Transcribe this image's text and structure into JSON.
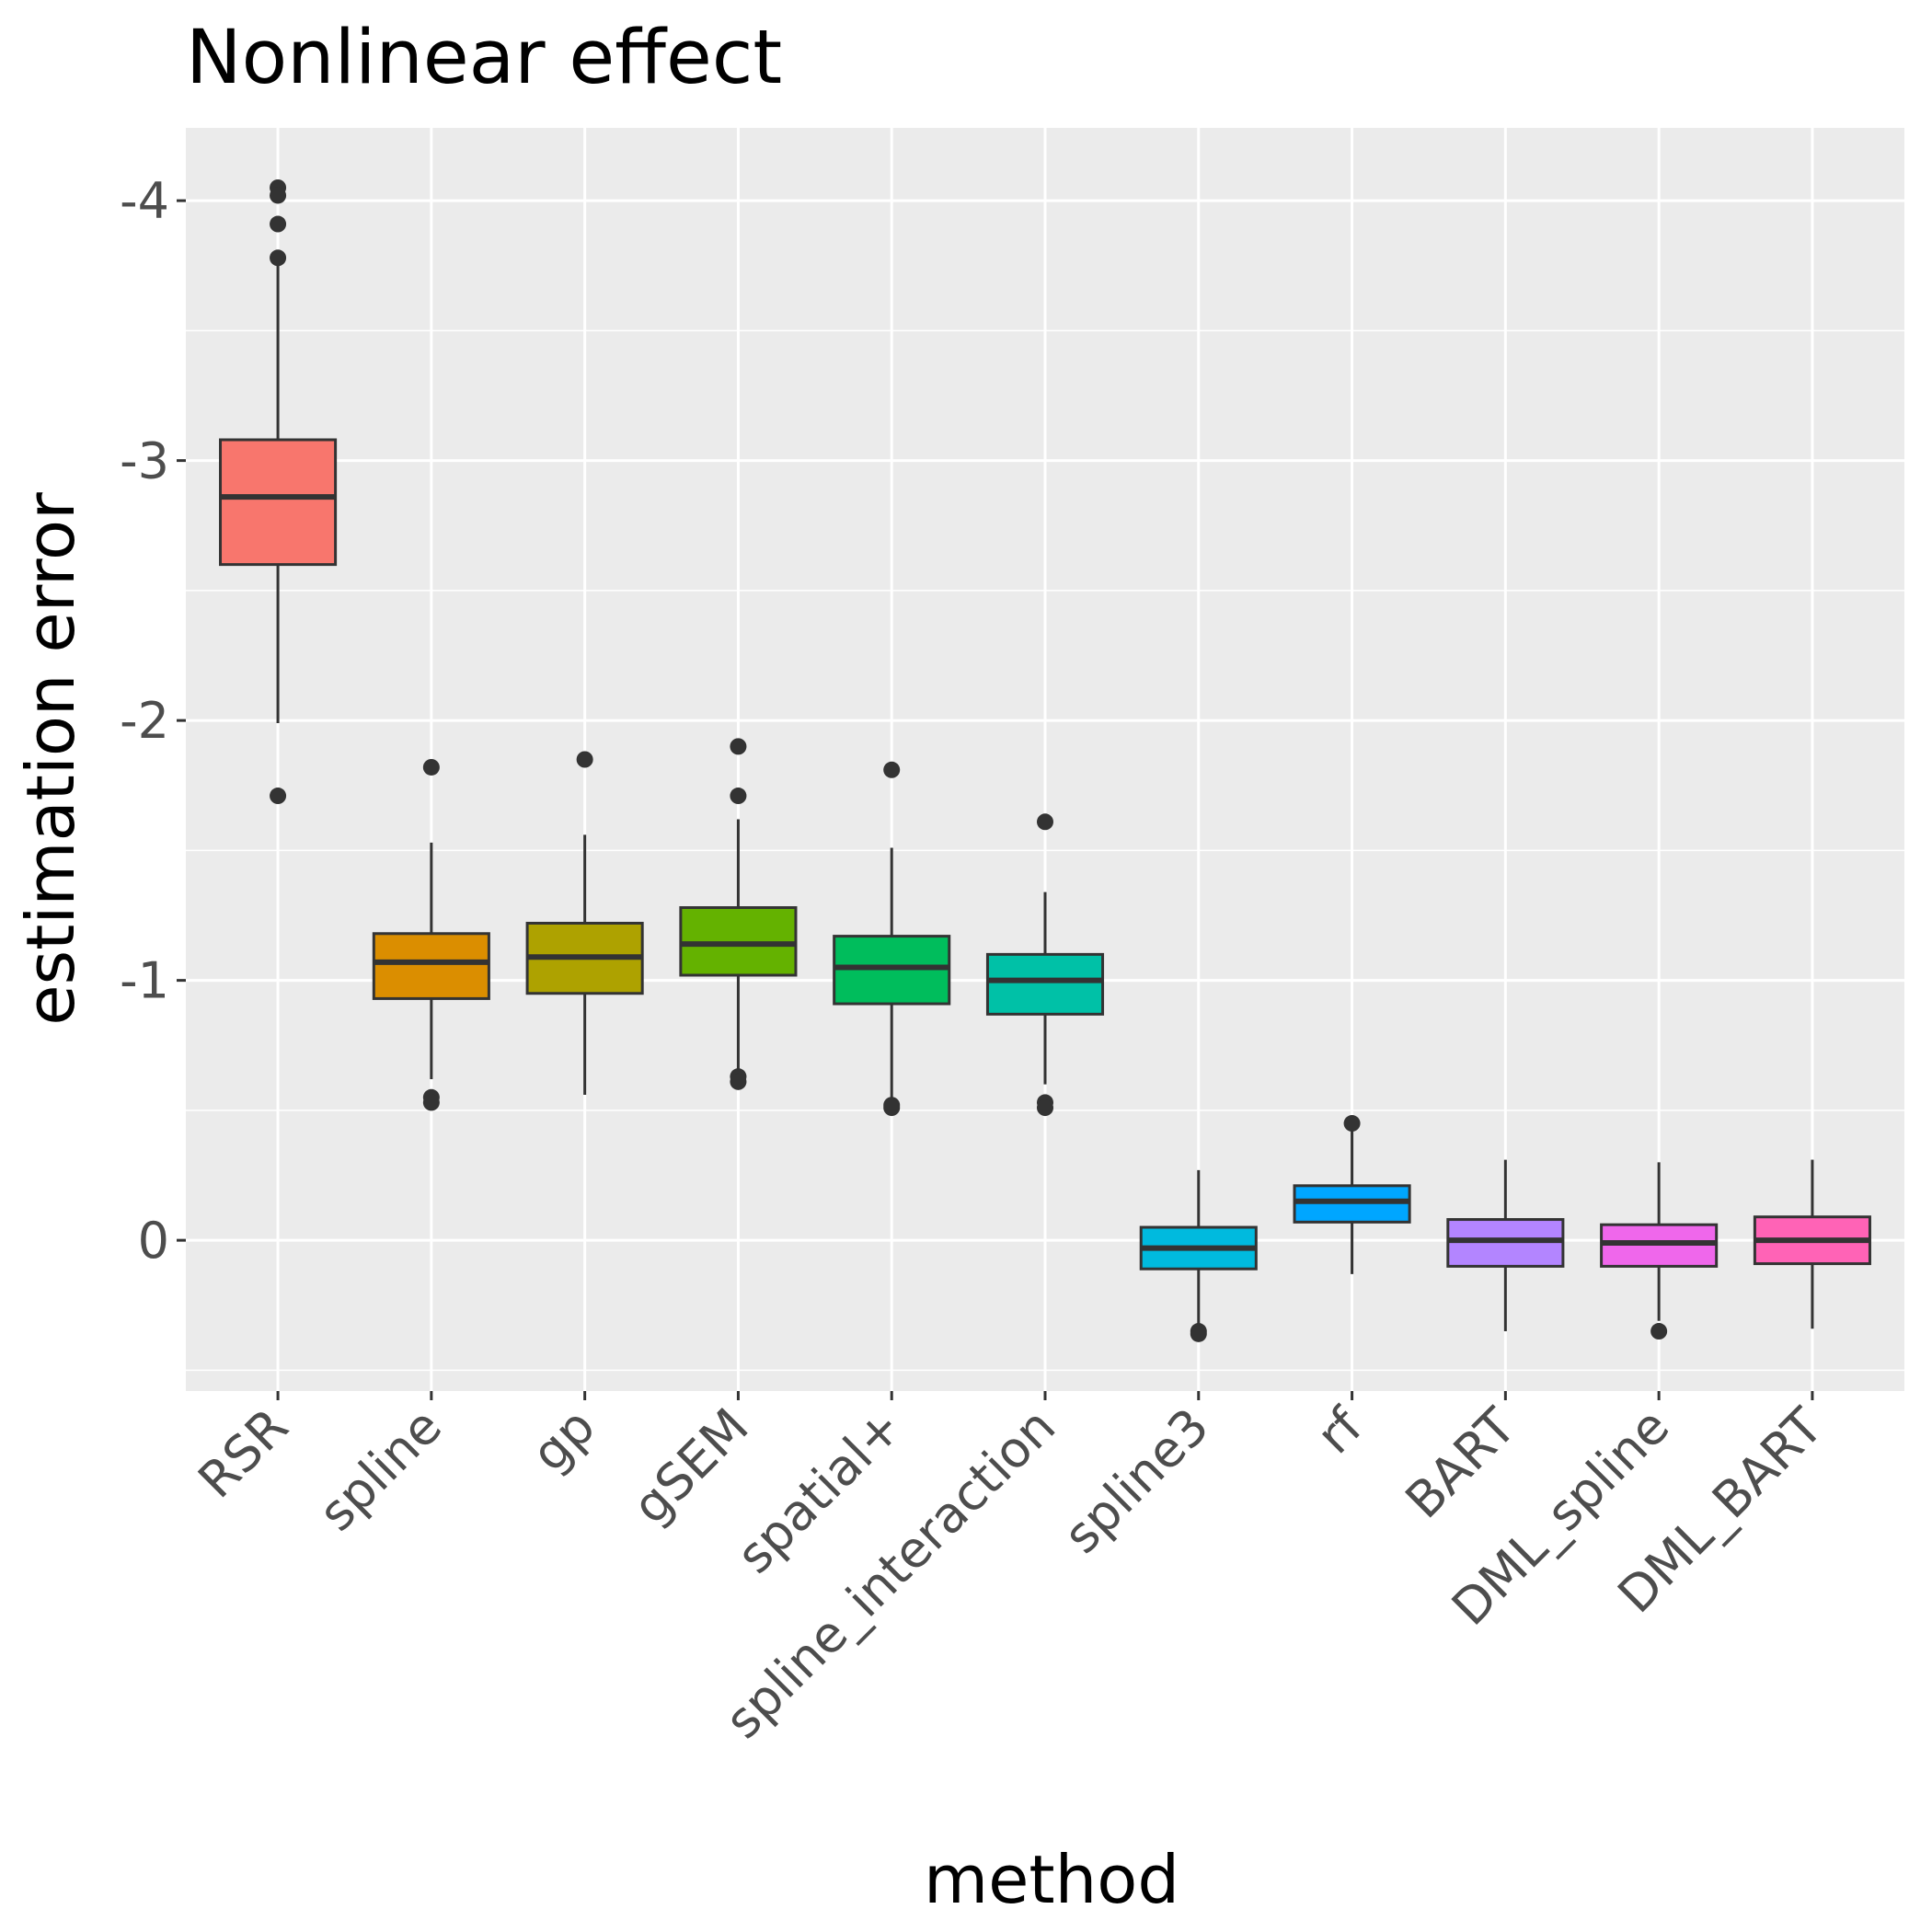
{
  "chart_data": {
    "type": "boxplot",
    "title": "Nonlinear effect",
    "xlabel": "method",
    "ylabel": "estimation error",
    "y_reversed": true,
    "ylim": [
      -4.28,
      0.58
    ],
    "yticks": [
      -4,
      -3,
      -2,
      -1,
      0
    ],
    "yticklabels": [
      "-4",
      "-3",
      "-2",
      "-1",
      "0"
    ],
    "grid": true,
    "categories": [
      "RSR",
      "spline",
      "gp",
      "gSEM",
      "spatial+",
      "spline_interaction",
      "spline3",
      "rf",
      "BART",
      "DML_spline",
      "DML_BART"
    ],
    "colors": [
      "#F8766D",
      "#DB8E00",
      "#AEA200",
      "#64B200",
      "#00BD5C",
      "#00C1A7",
      "#00BADE",
      "#00A6FF",
      "#B385FF",
      "#EF67EB",
      "#FF63B6"
    ],
    "boxes": [
      {
        "lower_whisker": -3.77,
        "q1": -3.08,
        "median": -2.86,
        "q3": -2.6,
        "upper_whisker": -1.99,
        "outliers": [
          -4.05,
          -4.02,
          -3.91,
          -3.78,
          -1.71
        ]
      },
      {
        "lower_whisker": -1.53,
        "q1": -1.18,
        "median": -1.07,
        "q3": -0.93,
        "upper_whisker": -0.62,
        "outliers": [
          -1.82,
          -0.55,
          -0.53
        ]
      },
      {
        "lower_whisker": -1.56,
        "q1": -1.22,
        "median": -1.09,
        "q3": -0.95,
        "upper_whisker": -0.56,
        "outliers": [
          -1.85
        ]
      },
      {
        "lower_whisker": -1.62,
        "q1": -1.28,
        "median": -1.14,
        "q3": -1.02,
        "upper_whisker": -0.65,
        "outliers": [
          -1.9,
          -1.71,
          -0.63,
          -0.61
        ]
      },
      {
        "lower_whisker": -1.51,
        "q1": -1.17,
        "median": -1.05,
        "q3": -0.91,
        "upper_whisker": -0.54,
        "outliers": [
          -1.81,
          -0.52,
          -0.51
        ]
      },
      {
        "lower_whisker": -1.34,
        "q1": -1.1,
        "median": -1.0,
        "q3": -0.87,
        "upper_whisker": -0.6,
        "outliers": [
          -1.61,
          -0.53,
          -0.51
        ]
      },
      {
        "lower_whisker": -0.27,
        "q1": -0.05,
        "median": 0.03,
        "q3": 0.11,
        "upper_whisker": 0.32,
        "outliers": [
          0.35,
          0.36
        ]
      },
      {
        "lower_whisker": -0.42,
        "q1": -0.21,
        "median": -0.15,
        "q3": -0.07,
        "upper_whisker": 0.13,
        "outliers": [
          -0.45
        ]
      },
      {
        "lower_whisker": -0.31,
        "q1": -0.08,
        "median": 0.0,
        "q3": 0.1,
        "upper_whisker": 0.35,
        "outliers": []
      },
      {
        "lower_whisker": -0.3,
        "q1": -0.06,
        "median": 0.01,
        "q3": 0.1,
        "upper_whisker": 0.31,
        "outliers": [
          0.35
        ]
      },
      {
        "lower_whisker": -0.31,
        "q1": -0.09,
        "median": 0.0,
        "q3": 0.09,
        "upper_whisker": 0.34,
        "outliers": []
      }
    ]
  }
}
